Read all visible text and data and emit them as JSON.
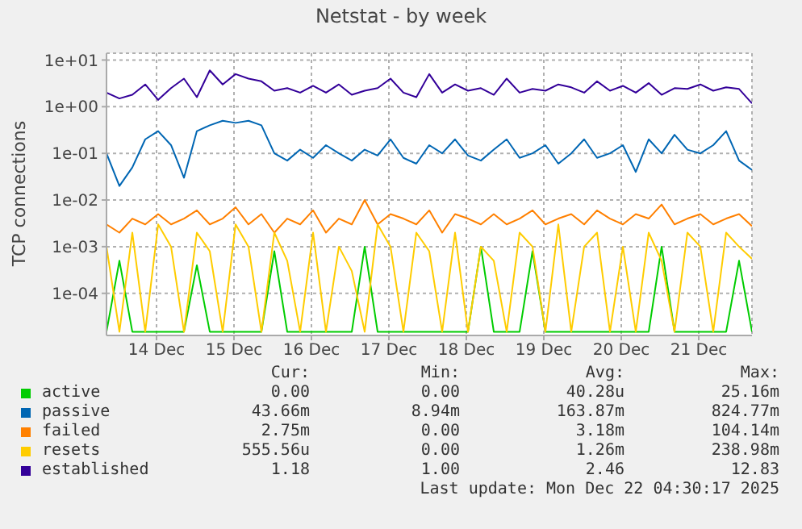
{
  "chart_data": {
    "type": "line",
    "title": "Netstat - by week",
    "ylabel": "TCP connections",
    "log": "y",
    "grid": true,
    "legend": "bottom",
    "marker": "none",
    "line_style": "solid",
    "x": [
      "2025-12-13T20:30",
      "2025-12-14T00:30",
      "2025-12-14T04:30",
      "2025-12-14T08:30",
      "2025-12-14T12:30",
      "2025-12-14T16:30",
      "2025-12-14T20:30",
      "2025-12-15T00:30",
      "2025-12-15T04:30",
      "2025-12-15T08:30",
      "2025-12-15T12:30",
      "2025-12-15T16:30",
      "2025-12-15T20:30",
      "2025-12-16T00:30",
      "2025-12-16T04:30",
      "2025-12-16T08:30",
      "2025-12-16T12:30",
      "2025-12-16T16:30",
      "2025-12-16T20:30",
      "2025-12-17T00:30",
      "2025-12-17T04:30",
      "2025-12-17T08:30",
      "2025-12-17T12:30",
      "2025-12-17T16:30",
      "2025-12-17T20:30",
      "2025-12-18T00:30",
      "2025-12-18T04:30",
      "2025-12-18T08:30",
      "2025-12-18T12:30",
      "2025-12-18T16:30",
      "2025-12-18T20:30",
      "2025-12-19T00:30",
      "2025-12-19T04:30",
      "2025-12-19T08:30",
      "2025-12-19T12:30",
      "2025-12-19T16:30",
      "2025-12-19T20:30",
      "2025-12-20T00:30",
      "2025-12-20T04:30",
      "2025-12-20T08:30",
      "2025-12-20T12:30",
      "2025-12-20T16:30",
      "2025-12-20T20:30",
      "2025-12-21T00:30",
      "2025-12-21T04:30",
      "2025-12-21T08:30",
      "2025-12-21T12:30",
      "2025-12-21T16:30",
      "2025-12-21T20:30",
      "2025-12-22T00:30",
      "2025-12-22T04:30"
    ],
    "xlim": [
      "2025-12-13T20:30",
      "2025-12-22T04:30"
    ],
    "xticks": [
      {
        "value": "2025-12-14T12:00",
        "label": "14 Dec"
      },
      {
        "value": "2025-12-15T12:00",
        "label": "15 Dec"
      },
      {
        "value": "2025-12-16T12:00",
        "label": "16 Dec"
      },
      {
        "value": "2025-12-17T12:00",
        "label": "17 Dec"
      },
      {
        "value": "2025-12-18T12:00",
        "label": "18 Dec"
      },
      {
        "value": "2025-12-19T12:00",
        "label": "19 Dec"
      },
      {
        "value": "2025-12-20T12:00",
        "label": "20 Dec"
      },
      {
        "value": "2025-12-21T12:00",
        "label": "21 Dec"
      }
    ],
    "ylim": [
      1.25e-05,
      14
    ],
    "yticks": [
      {
        "value": 0.0001,
        "label": "1e-04"
      },
      {
        "value": 0.001,
        "label": "1e-03"
      },
      {
        "value": 0.01,
        "label": "1e-02"
      },
      {
        "value": 0.1,
        "label": "1e-01"
      },
      {
        "value": 1,
        "label": "1e+00"
      },
      {
        "value": 10,
        "label": "1e+01"
      }
    ],
    "series": [
      {
        "name": "active",
        "color": "#00cc00",
        "values": [
          1.5e-05,
          0.0005,
          1.5e-05,
          1.5e-05,
          1.5e-05,
          1.5e-05,
          1.5e-05,
          0.0004,
          1.5e-05,
          1.5e-05,
          1.5e-05,
          1.5e-05,
          1.5e-05,
          0.0008,
          1.5e-05,
          1.5e-05,
          1.5e-05,
          1.5e-05,
          1.5e-05,
          1.5e-05,
          0.001,
          1.5e-05,
          1.5e-05,
          1.5e-05,
          1.5e-05,
          1.5e-05,
          1.5e-05,
          1.5e-05,
          1.5e-05,
          0.001,
          1.5e-05,
          1.5e-05,
          1.5e-05,
          0.0008,
          1.5e-05,
          1.5e-05,
          1.5e-05,
          1.5e-05,
          1.5e-05,
          1.5e-05,
          1.5e-05,
          1.5e-05,
          1.5e-05,
          0.001,
          1.5e-05,
          1.5e-05,
          1.5e-05,
          1.5e-05,
          1.5e-05,
          0.0005,
          1.5e-05
        ]
      },
      {
        "name": "passive",
        "color": "#0066b3",
        "values": [
          0.1,
          0.02,
          0.05,
          0.2,
          0.3,
          0.15,
          0.03,
          0.3,
          0.4,
          0.5,
          0.45,
          0.5,
          0.4,
          0.1,
          0.07,
          0.12,
          0.08,
          0.15,
          0.1,
          0.07,
          0.12,
          0.09,
          0.2,
          0.08,
          0.06,
          0.15,
          0.1,
          0.2,
          0.09,
          0.07,
          0.12,
          0.2,
          0.08,
          0.1,
          0.15,
          0.06,
          0.1,
          0.2,
          0.08,
          0.1,
          0.15,
          0.04,
          0.2,
          0.1,
          0.25,
          0.12,
          0.1,
          0.15,
          0.3,
          0.07,
          0.044
        ]
      },
      {
        "name": "failed",
        "color": "#ff8000",
        "values": [
          0.003,
          0.002,
          0.004,
          0.003,
          0.005,
          0.003,
          0.004,
          0.006,
          0.003,
          0.004,
          0.007,
          0.003,
          0.005,
          0.002,
          0.004,
          0.003,
          0.006,
          0.002,
          0.004,
          0.003,
          0.01,
          0.003,
          0.005,
          0.004,
          0.003,
          0.006,
          0.002,
          0.005,
          0.004,
          0.003,
          0.005,
          0.003,
          0.004,
          0.006,
          0.003,
          0.004,
          0.005,
          0.003,
          0.006,
          0.004,
          0.003,
          0.005,
          0.004,
          0.008,
          0.003,
          0.004,
          0.005,
          0.003,
          0.004,
          0.005,
          0.00275
        ]
      },
      {
        "name": "resets",
        "color": "#ffcc00",
        "values": [
          0.001,
          1.5e-05,
          0.002,
          1.5e-05,
          0.003,
          0.001,
          1.5e-05,
          0.002,
          0.0008,
          1.5e-05,
          0.003,
          0.001,
          1.5e-05,
          0.002,
          0.0005,
          1.5e-05,
          0.002,
          1.5e-05,
          0.001,
          0.0003,
          1.5e-05,
          0.003,
          0.001,
          1.5e-05,
          0.002,
          0.0008,
          1.5e-05,
          0.002,
          1.5e-05,
          0.001,
          0.0005,
          1.5e-05,
          0.002,
          0.001,
          1.5e-05,
          0.003,
          1.5e-05,
          0.001,
          0.002,
          1.5e-05,
          0.001,
          1.5e-05,
          0.002,
          0.0005,
          1.5e-05,
          0.002,
          0.001,
          1.5e-05,
          0.002,
          0.001,
          0.00055
        ]
      },
      {
        "name": "established",
        "color": "#330099",
        "values": [
          2,
          1.5,
          1.8,
          3,
          1.4,
          2.5,
          4,
          1.6,
          6,
          3,
          5,
          4,
          3.5,
          2.2,
          2.5,
          2,
          2.8,
          2,
          3,
          1.8,
          2.2,
          2.5,
          4,
          2,
          1.6,
          5,
          2,
          3,
          2.2,
          2.5,
          1.8,
          4,
          2,
          2.4,
          2.2,
          3,
          2.6,
          2,
          3.5,
          2.2,
          2.8,
          2,
          3.2,
          1.8,
          2.5,
          2.4,
          3,
          2.2,
          2.6,
          2.4,
          1.18
        ]
      }
    ],
    "annotations": [
      "Cur:",
      "Min:",
      "Avg:",
      "Max:",
      "0.00",
      "0.00",
      "40.28u",
      "25.16m",
      "43.66m",
      "8.94m",
      "163.87m",
      "824.77m",
      "2.75m",
      "0.00",
      "3.18m",
      "104.14m",
      "555.56u",
      "0.00",
      "1.26m",
      "238.98m",
      "1.18",
      "1.00",
      "2.46",
      "12.83",
      "Last update: Mon Dec 22 04:30:17 2025"
    ]
  }
}
